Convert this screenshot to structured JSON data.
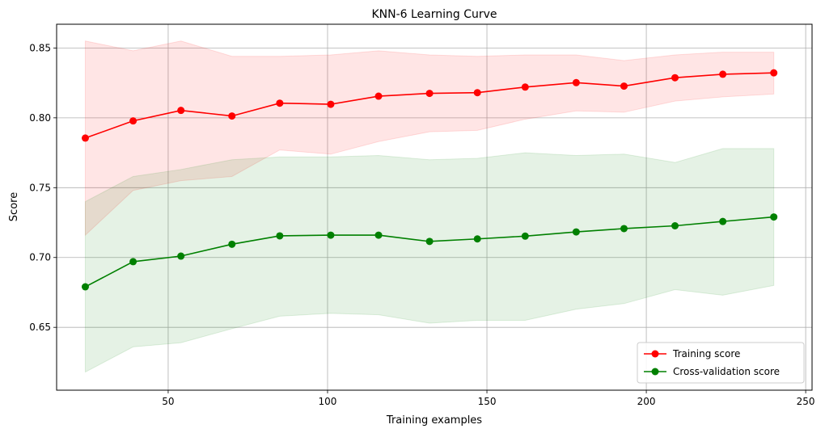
{
  "chart_data": {
    "type": "line",
    "title": "KNN-6 Learning Curve",
    "xlabel": "Training examples",
    "ylabel": "Score",
    "xlim": [
      15,
      252
    ],
    "ylim": [
      0.605,
      0.867
    ],
    "xticks": [
      50,
      100,
      150,
      200,
      250
    ],
    "yticks": [
      0.65,
      0.7,
      0.75,
      0.8,
      0.85
    ],
    "xtick_labels": [
      "50",
      "100",
      "150",
      "200",
      "250"
    ],
    "ytick_labels": [
      "0.65",
      "0.70",
      "0.75",
      "0.80",
      "0.85"
    ],
    "grid": true,
    "legend_position": "lower-right",
    "x": [
      24,
      39,
      54,
      70,
      85,
      101,
      116,
      132,
      147,
      162,
      178,
      193,
      209,
      224,
      240
    ],
    "series": [
      {
        "name": "Training score",
        "color": "#ff0000",
        "values": [
          0.7855,
          0.7978,
          0.8053,
          0.8013,
          0.8105,
          0.8097,
          0.8155,
          0.8175,
          0.818,
          0.822,
          0.8252,
          0.8227,
          0.8287,
          0.8312,
          0.8322
        ],
        "band_upper": [
          0.855,
          0.848,
          0.855,
          0.844,
          0.844,
          0.845,
          0.848,
          0.845,
          0.844,
          0.845,
          0.845,
          0.841,
          0.845,
          0.847,
          0.847
        ],
        "band_lower": [
          0.716,
          0.748,
          0.755,
          0.758,
          0.777,
          0.774,
          0.783,
          0.79,
          0.791,
          0.799,
          0.805,
          0.804,
          0.812,
          0.815,
          0.817
        ],
        "band_color": "#ff0000"
      },
      {
        "name": "Cross-validation score",
        "color": "#008000",
        "values": [
          0.679,
          0.697,
          0.701,
          0.7095,
          0.7155,
          0.716,
          0.716,
          0.7115,
          0.7133,
          0.7153,
          0.7183,
          0.7207,
          0.7227,
          0.7258,
          0.729
        ],
        "band_upper": [
          0.74,
          0.758,
          0.763,
          0.77,
          0.772,
          0.772,
          0.773,
          0.77,
          0.771,
          0.775,
          0.773,
          0.774,
          0.768,
          0.778,
          0.778
        ],
        "band_lower": [
          0.618,
          0.636,
          0.639,
          0.649,
          0.658,
          0.66,
          0.659,
          0.653,
          0.655,
          0.655,
          0.663,
          0.667,
          0.677,
          0.673,
          0.68
        ],
        "band_color": "#008000"
      }
    ]
  }
}
